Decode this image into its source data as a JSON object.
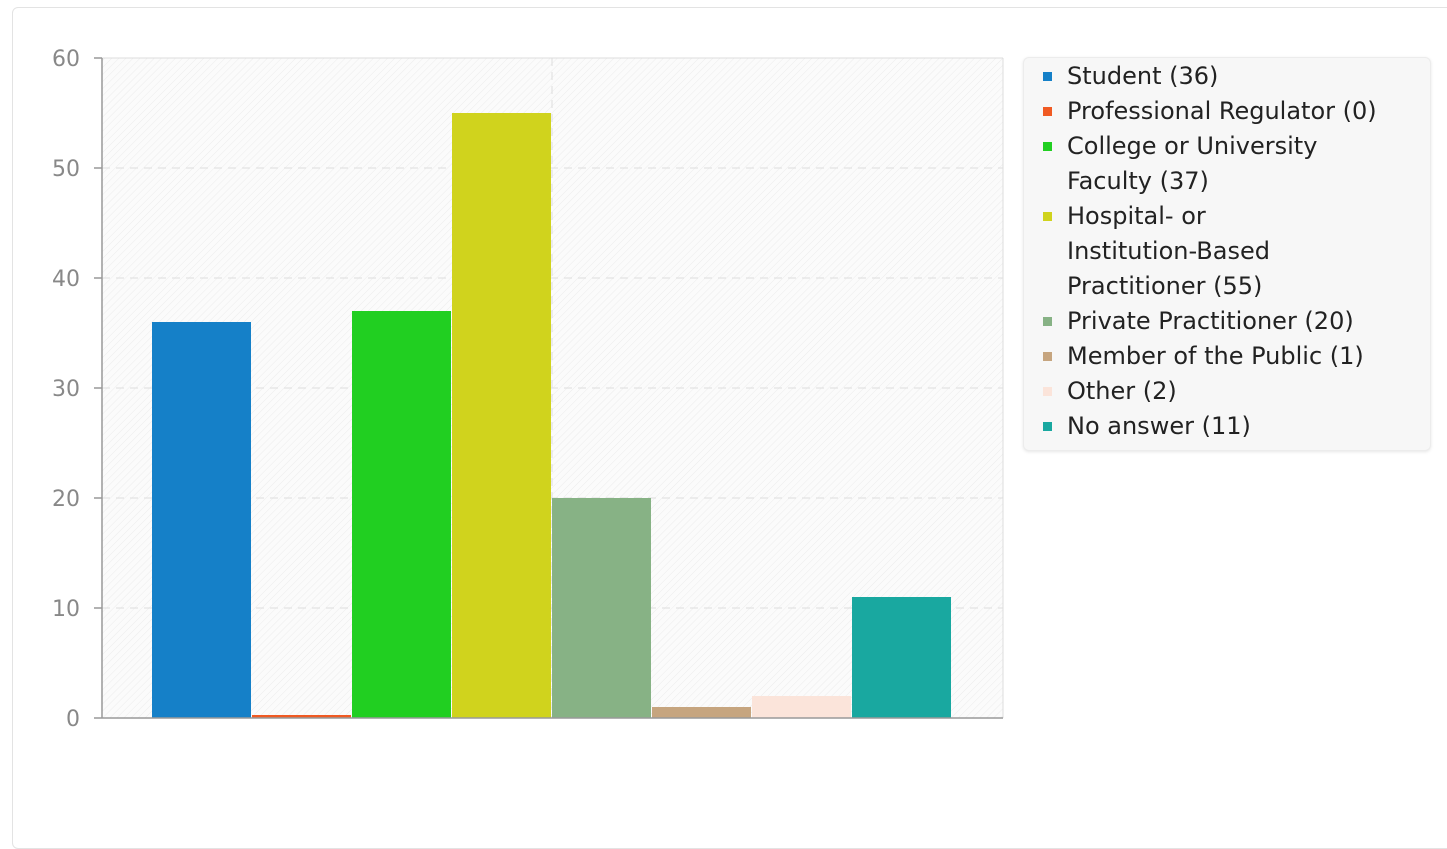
{
  "chart_data": {
    "type": "bar",
    "categories": [
      "Student",
      "Professional Regulator",
      "College or University Faculty",
      "Hospital- or Institution-Based Practitioner",
      "Private Practitioner",
      "Member of the Public",
      "Other",
      "No answer"
    ],
    "values": [
      36,
      0,
      37,
      55,
      20,
      1,
      2,
      11
    ],
    "colors": [
      "#1580c8",
      "#f05a23",
      "#21cf21",
      "#d0d31d",
      "#87b285",
      "#c6a57f",
      "#fbe4da",
      "#19a8a0"
    ],
    "legend": [
      {
        "lines": [
          "Student (36)"
        ]
      },
      {
        "lines": [
          "Professional Regulator (0)"
        ]
      },
      {
        "lines": [
          "College or University",
          "Faculty (37)"
        ]
      },
      {
        "lines": [
          "Hospital- or",
          "Institution-Based",
          "Practitioner (55)"
        ]
      },
      {
        "lines": [
          "Private Practitioner (20)"
        ]
      },
      {
        "lines": [
          "Member of the Public (1)"
        ]
      },
      {
        "lines": [
          "Other (2)"
        ]
      },
      {
        "lines": [
          "No answer (11)"
        ]
      }
    ],
    "yticks": [
      "0",
      "10",
      "20",
      "30",
      "40",
      "50",
      "60"
    ],
    "ylim": [
      0,
      60
    ],
    "grid": true,
    "legend_position": "right",
    "title": "",
    "xlabel": "",
    "ylabel": ""
  }
}
